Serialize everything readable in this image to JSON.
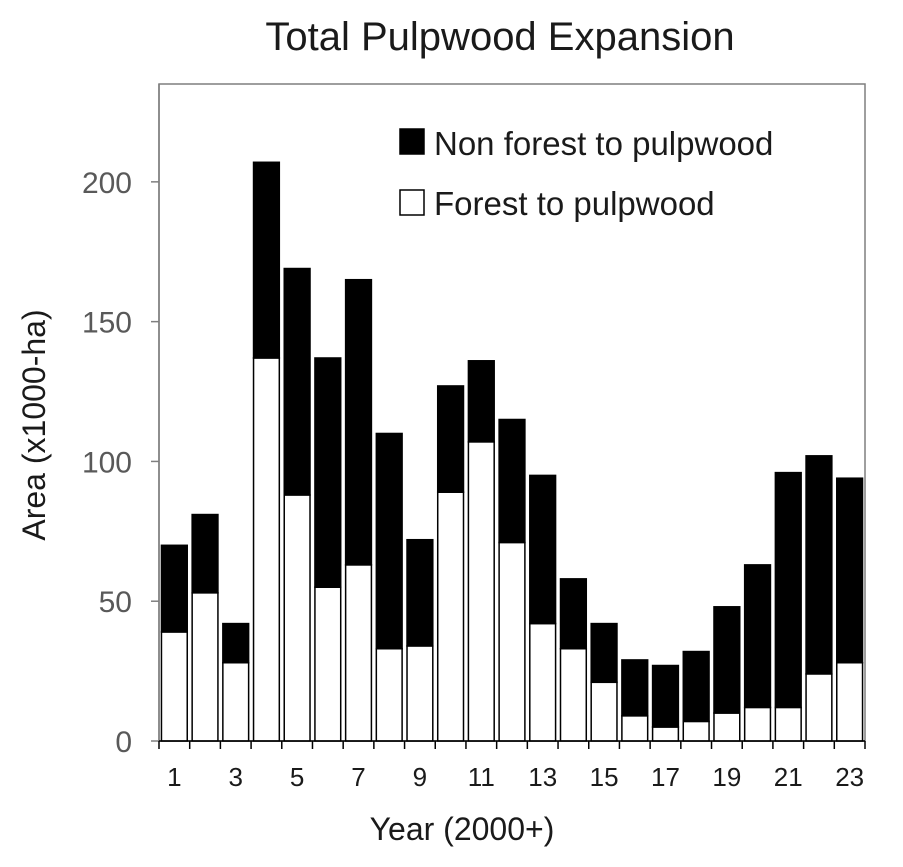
{
  "chart_data": {
    "type": "bar",
    "stacked": true,
    "title": "Total Pulpwood Expansion",
    "xlabel": "Year (2000+)",
    "ylabel": "Area (x1000-ha)",
    "ylim": [
      0,
      235
    ],
    "yticks": [
      0,
      50,
      100,
      150,
      200
    ],
    "categories": [
      "1",
      "2",
      "3",
      "4",
      "5",
      "6",
      "7",
      "8",
      "9",
      "10",
      "11",
      "12",
      "13",
      "14",
      "15",
      "16",
      "17",
      "18",
      "19",
      "20",
      "21",
      "22",
      "23"
    ],
    "x_tick_labels": [
      "1",
      "",
      "3",
      "",
      "5",
      "",
      "7",
      "",
      "9",
      "",
      "11",
      "",
      "13",
      "",
      "15",
      "",
      "17",
      "",
      "19",
      "",
      "21",
      "",
      "23"
    ],
    "grid": false,
    "legend_position": "top-right",
    "series": [
      {
        "name": "Forest to pulpwood",
        "color": "#ffffff",
        "values": [
          39,
          53,
          28,
          137,
          88,
          55,
          63,
          33,
          34,
          89,
          107,
          71,
          42,
          33,
          21,
          9,
          5,
          7,
          10,
          12,
          12,
          24,
          28
        ]
      },
      {
        "name": "Non forest to pulpwood",
        "color": "#000000",
        "values": [
          31,
          28,
          14,
          70,
          81,
          82,
          102,
          77,
          38,
          38,
          29,
          44,
          53,
          25,
          21,
          20,
          22,
          25,
          38,
          51,
          84,
          78,
          66
        ]
      }
    ]
  }
}
